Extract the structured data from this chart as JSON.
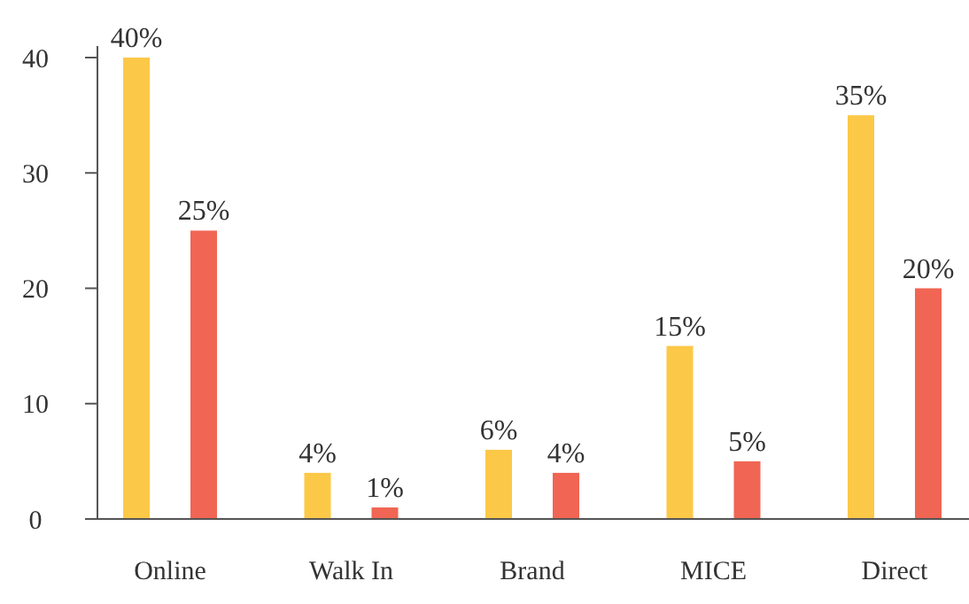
{
  "chart_data": {
    "type": "bar",
    "categories": [
      "Online",
      "Walk In",
      "Brand",
      "MICE",
      "Direct"
    ],
    "series": [
      {
        "color": "#fcc847",
        "values": [
          40,
          4,
          6,
          15,
          35
        ],
        "value_labels": [
          "40%",
          "4%",
          "6%",
          "15%",
          "35%"
        ]
      },
      {
        "color": "#f06553",
        "values": [
          25,
          1,
          4,
          5,
          20
        ],
        "value_labels": [
          "25%",
          "1%",
          "4%",
          "5%",
          "20%"
        ]
      }
    ],
    "ylim": [
      0,
      41
    ],
    "yticks": [
      0,
      10,
      20,
      30,
      40
    ],
    "grid": false
  }
}
